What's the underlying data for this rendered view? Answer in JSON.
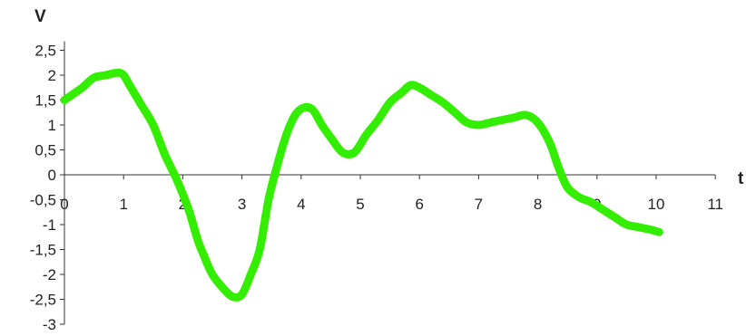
{
  "chart_data": {
    "type": "line",
    "xlabel": "t",
    "ylabel": "V",
    "xlim": [
      0,
      11
    ],
    "ylim": [
      -3,
      2.5
    ],
    "xticks": [
      "0",
      "1",
      "2",
      "3",
      "4",
      "5",
      "6",
      "7",
      "8",
      "9",
      "10",
      "11"
    ],
    "yticks": [
      "2,5",
      "2",
      "1,5",
      "1",
      "0,5",
      "0",
      "-0,5",
      "-1",
      "-1,5",
      "-2",
      "-2,5",
      "-3"
    ],
    "grid": false,
    "series": [
      {
        "color": "#33ee00",
        "x": [
          0,
          0.3,
          0.5,
          0.7,
          0.9,
          1.0,
          1.1,
          1.3,
          1.5,
          1.7,
          1.9,
          2.1,
          2.25,
          2.35,
          2.5,
          2.7,
          2.85,
          3.0,
          3.15,
          3.3,
          3.45,
          3.6,
          3.75,
          3.9,
          4.05,
          4.2,
          4.35,
          4.5,
          4.7,
          4.9,
          5.1,
          5.3,
          5.5,
          5.7,
          5.85,
          6.0,
          6.2,
          6.4,
          6.6,
          6.8,
          7.0,
          7.2,
          7.4,
          7.6,
          7.8,
          8.0,
          8.2,
          8.35,
          8.5,
          8.7,
          8.9,
          9.1,
          9.3,
          9.5,
          9.7,
          9.9,
          10.05
        ],
        "y": [
          1.5,
          1.75,
          1.95,
          2.0,
          2.05,
          2.0,
          1.8,
          1.4,
          1.0,
          0.4,
          -0.1,
          -0.7,
          -1.3,
          -1.6,
          -2.0,
          -2.3,
          -2.45,
          -2.4,
          -2.0,
          -1.5,
          -0.5,
          0.2,
          0.8,
          1.2,
          1.35,
          1.3,
          1.0,
          0.75,
          0.45,
          0.45,
          0.8,
          1.1,
          1.45,
          1.65,
          1.8,
          1.75,
          1.6,
          1.45,
          1.25,
          1.05,
          1.0,
          1.05,
          1.1,
          1.15,
          1.2,
          1.05,
          0.65,
          0.15,
          -0.25,
          -0.45,
          -0.55,
          -0.7,
          -0.85,
          -1.0,
          -1.05,
          -1.1,
          -1.15
        ]
      }
    ]
  }
}
